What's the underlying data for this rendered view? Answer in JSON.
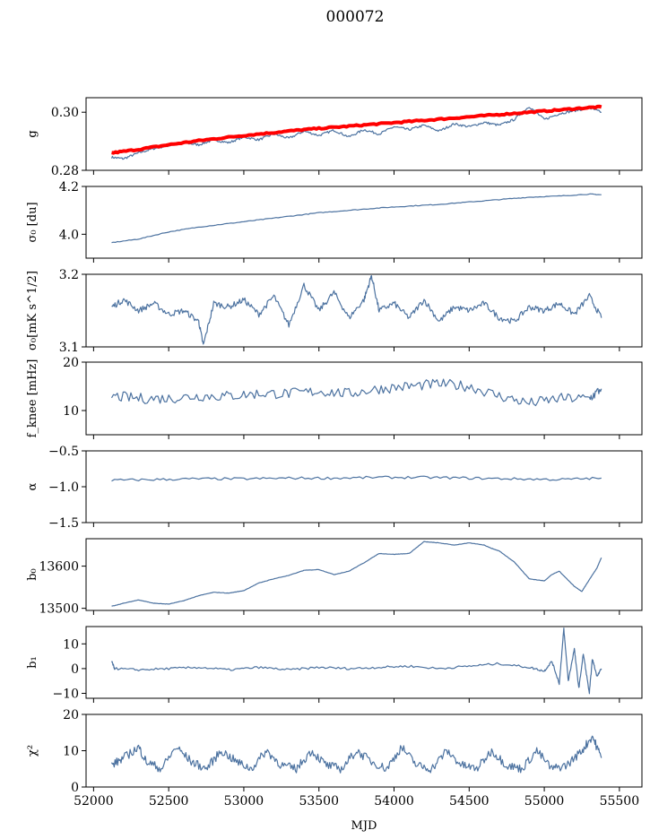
{
  "figure": {
    "title": "000072",
    "xlabel": "MJD"
  },
  "colors": {
    "series": "#4c72a0",
    "fit": "#ff0000",
    "frame": "#000000"
  },
  "chart_data": [
    {
      "type": "line",
      "ylabel": "g",
      "ylim": [
        0.28,
        0.305
      ],
      "yticks": [
        0.28,
        0.3
      ],
      "ytick_labels": [
        "0.28",
        "0.30"
      ],
      "xlim": [
        51950,
        55650
      ],
      "x": [
        52120,
        52200,
        52300,
        52400,
        52500,
        52600,
        52700,
        52800,
        52900,
        53000,
        53100,
        53200,
        53300,
        53400,
        53500,
        53600,
        53700,
        53800,
        53900,
        54000,
        54100,
        54200,
        54300,
        54400,
        54500,
        54600,
        54700,
        54800,
        54900,
        55000,
        55100,
        55200,
        55300,
        55380
      ],
      "series": [
        {
          "values": [
            0.2845,
            0.284,
            0.286,
            0.2875,
            0.2885,
            0.2895,
            0.2888,
            0.2905,
            0.2895,
            0.2915,
            0.2905,
            0.2925,
            0.291,
            0.2935,
            0.292,
            0.2938,
            0.2915,
            0.294,
            0.2925,
            0.295,
            0.294,
            0.2955,
            0.2935,
            0.296,
            0.295,
            0.2965,
            0.2955,
            0.2975,
            0.302,
            0.2975,
            0.2995,
            0.3005,
            0.3015,
            0.3
          ]
        },
        {
          "values": [
            0.286,
            0.2865,
            0.2872,
            0.288,
            0.2888,
            0.2895,
            0.2902,
            0.2908,
            0.2914,
            0.292,
            0.2925,
            0.293,
            0.2935,
            0.294,
            0.2944,
            0.2948,
            0.2952,
            0.2956,
            0.296,
            0.2964,
            0.2968,
            0.2972,
            0.2976,
            0.298,
            0.2984,
            0.2988,
            0.2992,
            0.2996,
            0.3,
            0.3004,
            0.3008,
            0.3012,
            0.3016,
            0.3018
          ]
        }
      ]
    },
    {
      "type": "line",
      "ylabel": "σ₀ [du]",
      "ylim": [
        3.9,
        4.2
      ],
      "yticks": [
        4.0,
        4.2
      ],
      "ytick_labels": [
        "4.0",
        "4.2"
      ],
      "xlim": [
        51950,
        55650
      ],
      "x": [
        52120,
        52300,
        52500,
        52700,
        52900,
        53100,
        53300,
        53500,
        53700,
        53900,
        54100,
        54300,
        54500,
        54700,
        54900,
        55100,
        55300,
        55380
      ],
      "series": [
        {
          "values": [
            3.965,
            3.98,
            4.01,
            4.03,
            4.045,
            4.06,
            4.075,
            4.09,
            4.1,
            4.11,
            4.118,
            4.125,
            4.135,
            4.145,
            4.155,
            4.16,
            4.168,
            4.165
          ]
        }
      ]
    },
    {
      "type": "line",
      "ylabel": "σ₀[mK s^1/2]",
      "ylim": [
        3.1,
        3.2
      ],
      "yticks": [
        3.1,
        3.2
      ],
      "ytick_labels": [
        "3.1",
        "3.2"
      ],
      "xlim": [
        51950,
        55650
      ],
      "x": [
        52120,
        52200,
        52300,
        52400,
        52500,
        52600,
        52700,
        52730,
        52800,
        52900,
        53000,
        53100,
        53200,
        53300,
        53400,
        53500,
        53600,
        53700,
        53800,
        53850,
        53900,
        54000,
        54100,
        54200,
        54300,
        54400,
        54500,
        54600,
        54700,
        54800,
        54900,
        55000,
        55100,
        55200,
        55300,
        55380
      ],
      "series": [
        {
          "values": [
            3.155,
            3.165,
            3.15,
            3.16,
            3.145,
            3.15,
            3.135,
            3.102,
            3.16,
            3.155,
            3.165,
            3.145,
            3.17,
            3.13,
            3.185,
            3.15,
            3.175,
            3.14,
            3.165,
            3.198,
            3.15,
            3.16,
            3.14,
            3.165,
            3.135,
            3.155,
            3.15,
            3.16,
            3.14,
            3.135,
            3.155,
            3.15,
            3.16,
            3.145,
            3.17,
            3.14
          ]
        }
      ]
    },
    {
      "type": "line",
      "ylabel": "f_knee [mHz]",
      "ylim": [
        5,
        20
      ],
      "yticks": [
        10,
        20
      ],
      "ytick_labels": [
        "10",
        "20"
      ],
      "xlim": [
        51950,
        55650
      ],
      "x": [
        52120,
        52300,
        52500,
        52700,
        52900,
        53100,
        53300,
        53500,
        53700,
        53900,
        54100,
        54300,
        54500,
        54700,
        54900,
        55100,
        55300,
        55380
      ],
      "series": [
        {
          "values": [
            13,
            12.5,
            12.5,
            13,
            13,
            13.5,
            13.5,
            14,
            13.5,
            14.5,
            15,
            15.5,
            15,
            13,
            11.5,
            12.5,
            12.5,
            14.5
          ]
        }
      ]
    },
    {
      "type": "line",
      "ylabel": "α",
      "ylim": [
        -1.5,
        -0.5
      ],
      "yticks": [
        -1.5,
        -1.0,
        -0.5
      ],
      "ytick_labels": [
        "−1.5",
        "−1.0",
        "−0.5"
      ],
      "xlim": [
        51950,
        55650
      ],
      "x": [
        52120,
        52400,
        52700,
        53000,
        53300,
        53600,
        53900,
        54200,
        54500,
        54800,
        55100,
        55380
      ],
      "series": [
        {
          "values": [
            -0.91,
            -0.9,
            -0.89,
            -0.89,
            -0.88,
            -0.88,
            -0.87,
            -0.87,
            -0.88,
            -0.89,
            -0.9,
            -0.88
          ]
        }
      ]
    },
    {
      "type": "line",
      "ylabel": "b₀",
      "ylim": [
        13495,
        13665
      ],
      "yticks": [
        13500,
        13600
      ],
      "ytick_labels": [
        "13500",
        "13600"
      ],
      "xlim": [
        51950,
        55650
      ],
      "x": [
        52120,
        52200,
        52300,
        52400,
        52500,
        52600,
        52700,
        52800,
        52900,
        53000,
        53100,
        53200,
        53300,
        53400,
        53500,
        53600,
        53700,
        53800,
        53900,
        54000,
        54100,
        54200,
        54300,
        54400,
        54500,
        54600,
        54650,
        54700,
        54800,
        54900,
        55000,
        55050,
        55100,
        55150,
        55200,
        55250,
        55300,
        55350,
        55380
      ],
      "series": [
        {
          "values": [
            13505,
            13512,
            13520,
            13512,
            13510,
            13518,
            13530,
            13538,
            13536,
            13542,
            13560,
            13570,
            13578,
            13590,
            13592,
            13580,
            13588,
            13608,
            13630,
            13628,
            13630,
            13658,
            13655,
            13650,
            13655,
            13650,
            13642,
            13636,
            13610,
            13570,
            13565,
            13580,
            13588,
            13570,
            13552,
            13540,
            13568,
            13595,
            13620
          ]
        }
      ]
    },
    {
      "type": "line",
      "ylabel": "b₁",
      "ylim": [
        -12,
        17
      ],
      "yticks": [
        -10,
        0,
        10
      ],
      "ytick_labels": [
        "−10",
        "0",
        "10"
      ],
      "xlim": [
        51950,
        55650
      ],
      "x": [
        52120,
        52140,
        52300,
        52500,
        52700,
        52900,
        53100,
        53300,
        53500,
        53700,
        53900,
        54100,
        54300,
        54500,
        54700,
        54900,
        55000,
        55050,
        55100,
        55130,
        55160,
        55200,
        55230,
        55260,
        55300,
        55320,
        55350,
        55380
      ],
      "series": [
        {
          "values": [
            3,
            0,
            -0.5,
            0,
            0.5,
            -0.5,
            0.5,
            -0.5,
            0.5,
            0,
            0.5,
            1,
            0,
            1,
            2,
            0.5,
            -1,
            3,
            -6,
            16,
            -5,
            8,
            -8,
            6,
            -10,
            4,
            -3,
            0
          ]
        }
      ]
    },
    {
      "type": "line",
      "ylabel": "χ²",
      "ylim": [
        0,
        20
      ],
      "yticks": [
        0,
        10,
        20
      ],
      "ytick_labels": [
        "0",
        "10",
        "20"
      ],
      "xlim": [
        51950,
        55650
      ],
      "x": [
        52120,
        52200,
        52300,
        52350,
        52450,
        52550,
        52650,
        52750,
        52850,
        52950,
        53050,
        53150,
        53250,
        53350,
        53450,
        53550,
        53650,
        53750,
        53850,
        53950,
        54050,
        54150,
        54250,
        54350,
        54450,
        54550,
        54650,
        54750,
        54850,
        54950,
        55050,
        55150,
        55250,
        55320,
        55380
      ],
      "series": [
        {
          "values": [
            6,
            8,
            11,
            7,
            5,
            11,
            7,
            5,
            10,
            7,
            5,
            10,
            6,
            5,
            10,
            6,
            5,
            10,
            7,
            5,
            11,
            6,
            5,
            10,
            6,
            5,
            10,
            6,
            5,
            10,
            5,
            6,
            10,
            14,
            8
          ]
        }
      ]
    }
  ]
}
